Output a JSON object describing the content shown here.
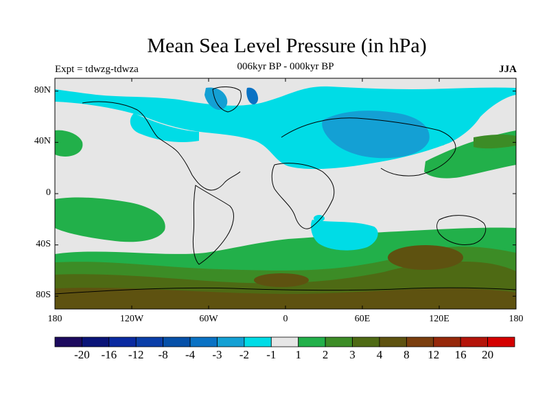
{
  "title": "Mean Sea Level Pressure (in hPa)",
  "subtitle": "006kyr BP - 000kyr BP",
  "left_label": "Expt = tdwzg-tdwza",
  "right_label": "JJA",
  "map": {
    "projection": "equirectangular",
    "lon_range": [
      -180,
      180
    ],
    "lat_range": [
      -90,
      90
    ],
    "lon_ticks": [
      {
        "value": -180,
        "label": "180"
      },
      {
        "value": -120,
        "label": "120W"
      },
      {
        "value": -60,
        "label": "60W"
      },
      {
        "value": 0,
        "label": "0"
      },
      {
        "value": 60,
        "label": "60E"
      },
      {
        "value": 120,
        "label": "120E"
      },
      {
        "value": 180,
        "label": "180"
      }
    ],
    "lat_ticks": [
      {
        "value": 80,
        "label": "80N"
      },
      {
        "value": 40,
        "label": "40N"
      },
      {
        "value": 0,
        "label": "0"
      },
      {
        "value": -40,
        "label": "40S"
      },
      {
        "value": -80,
        "label": "80S"
      }
    ]
  },
  "colorbar": {
    "colors": [
      "#1c0a5e",
      "#0a1478",
      "#0a2aa0",
      "#0a3ea8",
      "#0650a8",
      "#0a72c4",
      "#14a0d4",
      "#00dce6",
      "#e6e6e6",
      "#22b04a",
      "#3c8c26",
      "#4e6a14",
      "#5e5210",
      "#7a3e0e",
      "#96280a",
      "#b4140a",
      "#d40000"
    ],
    "labels": [
      "-20",
      "-16",
      "-12",
      "-8",
      "-4",
      "-3",
      "-2",
      "-1",
      "1",
      "2",
      "3",
      "4",
      "8",
      "12",
      "16",
      "20"
    ]
  }
}
